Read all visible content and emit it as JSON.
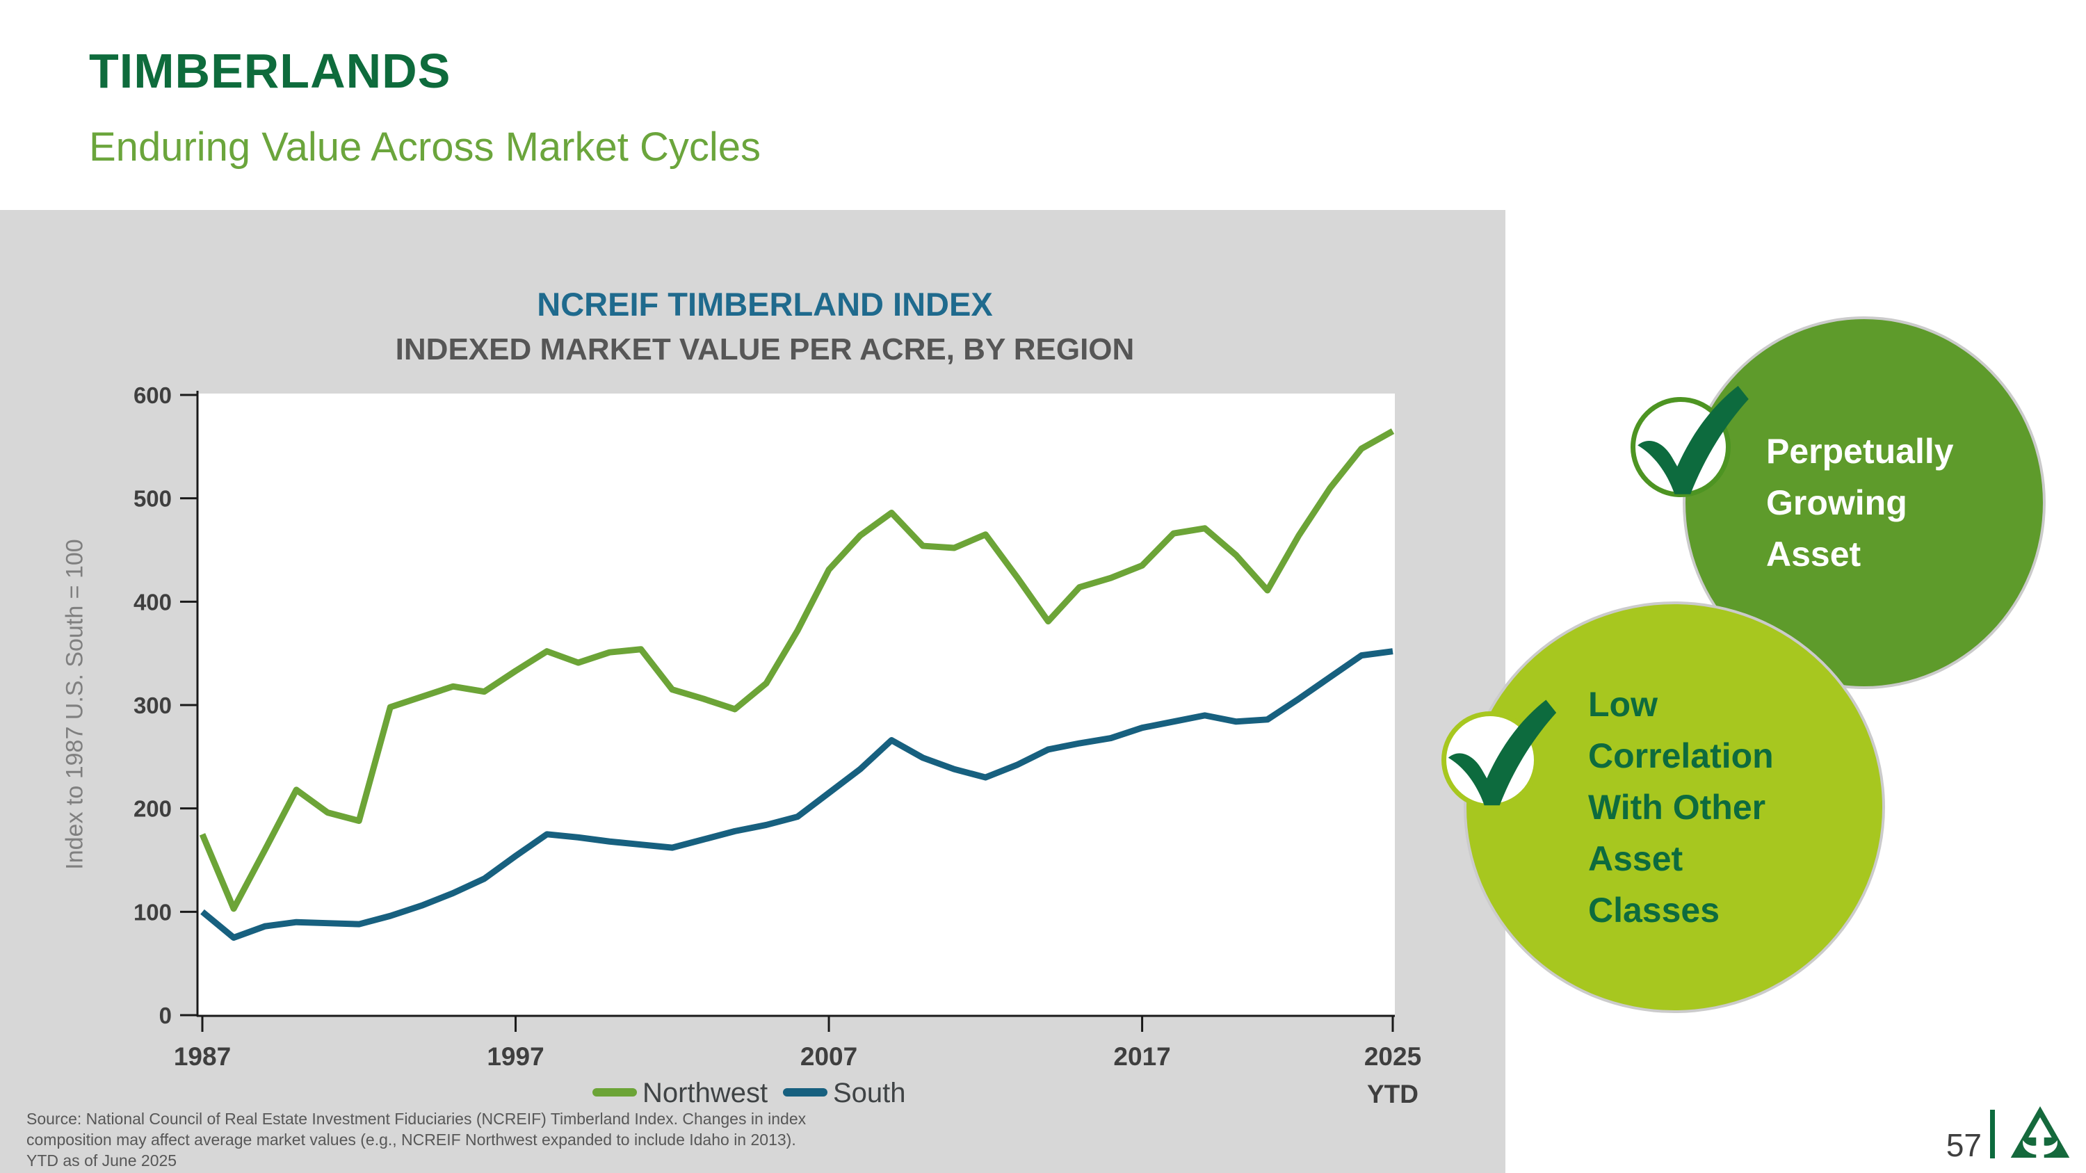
{
  "slide": {
    "title": "TIMBERLANDS",
    "subtitle": "Enduring Value Across Market Cycles"
  },
  "colors": {
    "title_green": "#0E6B3C",
    "subtitle_green": "#6BA53C",
    "chart_title_teal": "#1F6A8D",
    "northwest_line": "#6CA437",
    "south_line": "#17607F",
    "content_band_gray": "#D7D7D7",
    "callout_top_green": "#5E9B2B",
    "callout_bottom_green": "#A7C71F",
    "dark_green_text": "#0D6B3E"
  },
  "chart_data": {
    "type": "line",
    "title": "NCREIF TIMBERLAND INDEX",
    "subtitle": "INDEXED MARKET VALUE PER ACRE, BY REGION",
    "ylabel": "Index to 1987 U.S. South = 100",
    "ylim": [
      0,
      600
    ],
    "yticks": [
      0,
      100,
      200,
      300,
      400,
      500,
      600
    ],
    "x_start": 1987,
    "x_end": 2025,
    "xtick_years": [
      1987,
      1997,
      2007,
      2017,
      2025
    ],
    "xtick_labels": [
      "1987",
      "1997",
      "2007",
      "2017",
      "2025"
    ],
    "last_tick_note": "YTD",
    "grid": false,
    "legend_position": "bottom",
    "series": [
      {
        "name": "Northwest",
        "color": "#6CA437",
        "values": [
          175,
          103,
          160,
          218,
          196,
          188,
          298,
          308,
          318,
          313,
          333,
          352,
          341,
          351,
          354,
          315,
          306,
          296,
          321,
          372,
          431,
          464,
          486,
          454,
          452,
          465,
          424,
          381,
          414,
          423,
          435,
          466,
          471,
          445,
          411,
          464,
          510,
          548,
          565
        ]
      },
      {
        "name": "South",
        "color": "#17607F",
        "values": [
          100,
          75,
          86,
          90,
          89,
          88,
          96,
          106,
          118,
          132,
          154,
          175,
          172,
          168,
          165,
          162,
          170,
          178,
          184,
          192,
          215,
          238,
          266,
          249,
          238,
          230,
          242,
          257,
          263,
          268,
          278,
          284,
          290,
          284,
          286,
          306,
          327,
          348,
          352
        ]
      }
    ]
  },
  "callouts": [
    {
      "icon": "check-icon",
      "text_lines": [
        "Perpetually",
        "Growing",
        "Asset"
      ]
    },
    {
      "icon": "check-icon",
      "text_lines": [
        "Low",
        "Correlation",
        "With Other",
        "Asset",
        "Classes"
      ]
    }
  ],
  "source_note": {
    "line1": "Source: National Council of Real Estate Investment Fiduciaries (NCREIF) Timberland Index. Changes in index",
    "line2": "composition may affect average market values (e.g., NCREIF Northwest expanded to include Idaho in 2013).",
    "line3": "YTD as of June 2025"
  },
  "footer": {
    "page_number": "57",
    "logo_icon": "tree-arrow-logo"
  }
}
